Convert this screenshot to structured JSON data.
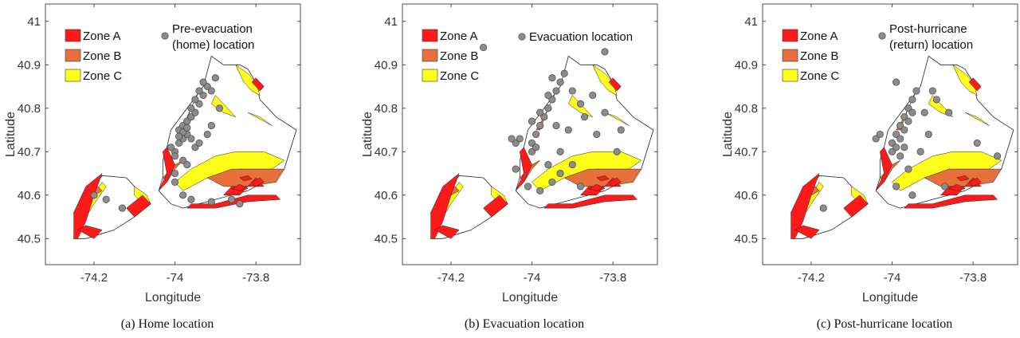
{
  "colors": {
    "zone_a": "#ff1a1a",
    "zone_b": "#e8703a",
    "zone_c": "#ffff1a",
    "land": "#ffffff",
    "marker": "#8c8c8c",
    "marker_edge": "#444444"
  },
  "chart_data": [
    {
      "type": "scatter",
      "title": "",
      "xlabel": "Longitude",
      "ylabel": "Latitude",
      "xlim": [
        -74.32,
        -73.69
      ],
      "ylim": [
        40.44,
        41.04
      ],
      "xticks": [
        "-74.2",
        "-74",
        "-73.8"
      ],
      "yticks": [
        "40.5",
        "40.6",
        "40.7",
        "40.8",
        "40.9",
        "41"
      ],
      "legend": [
        "Zone A",
        "Zone B",
        "Zone C"
      ],
      "marker_label": [
        "Pre-evacuation",
        "(home) location"
      ],
      "caption": "(a)  Home location",
      "points": [
        [
          -74.17,
          40.59
        ],
        [
          -74.13,
          40.57
        ],
        [
          -74.2,
          40.6
        ],
        [
          -74.0,
          40.65
        ],
        [
          -74.0,
          40.63
        ],
        [
          -73.98,
          40.6
        ],
        [
          -73.96,
          40.59
        ],
        [
          -73.91,
          40.585
        ],
        [
          -73.84,
          40.58
        ],
        [
          -73.86,
          40.59
        ],
        [
          -74.0,
          40.7
        ],
        [
          -74.01,
          40.71
        ],
        [
          -73.99,
          40.72
        ],
        [
          -73.98,
          40.73
        ],
        [
          -73.97,
          40.74
        ],
        [
          -73.99,
          40.75
        ],
        [
          -73.98,
          40.76
        ],
        [
          -73.97,
          40.77
        ],
        [
          -73.96,
          40.78
        ],
        [
          -73.95,
          40.79
        ],
        [
          -73.96,
          40.8
        ],
        [
          -73.94,
          40.81
        ],
        [
          -73.95,
          40.82
        ],
        [
          -73.93,
          40.83
        ],
        [
          -73.94,
          40.84
        ],
        [
          -73.92,
          40.85
        ],
        [
          -73.93,
          40.86
        ],
        [
          -73.98,
          40.745
        ],
        [
          -73.97,
          40.755
        ],
        [
          -73.99,
          40.735
        ],
        [
          -73.95,
          40.71
        ],
        [
          -73.94,
          40.72
        ],
        [
          -73.96,
          40.73
        ],
        [
          -73.92,
          40.74
        ],
        [
          -73.91,
          40.76
        ],
        [
          -73.89,
          40.8
        ],
        [
          -73.91,
          40.84
        ],
        [
          -73.9,
          40.87
        ],
        [
          -73.98,
          40.68
        ],
        [
          -74.0,
          40.69
        ],
        [
          -73.97,
          40.67
        ]
      ]
    },
    {
      "type": "scatter",
      "title": "",
      "xlabel": "Longitude",
      "ylabel": "Latitude",
      "xlim": [
        -74.32,
        -73.69
      ],
      "ylim": [
        40.44,
        41.04
      ],
      "xticks": [
        "-74.2",
        "-74",
        "-73.8"
      ],
      "yticks": [
        "40.5",
        "40.6",
        "40.7",
        "40.8",
        "40.9",
        "41"
      ],
      "legend": [
        "Zone A",
        "Zone B",
        "Zone C"
      ],
      "marker_label": [
        "Evacuation location"
      ],
      "caption": "(b)  Evacuation location",
      "points": [
        [
          -74.12,
          40.94
        ],
        [
          -73.82,
          40.93
        ],
        [
          -74.04,
          40.72
        ],
        [
          -74.05,
          40.73
        ],
        [
          -74.03,
          40.73
        ],
        [
          -74.04,
          40.66
        ],
        [
          -74.0,
          40.7
        ],
        [
          -74.0,
          40.72
        ],
        [
          -73.99,
          40.74
        ],
        [
          -73.98,
          40.76
        ],
        [
          -73.97,
          40.78
        ],
        [
          -73.96,
          40.8
        ],
        [
          -73.95,
          40.82
        ],
        [
          -73.94,
          40.84
        ],
        [
          -73.93,
          40.86
        ],
        [
          -73.92,
          40.88
        ],
        [
          -73.99,
          40.71
        ],
        [
          -74.0,
          40.77
        ],
        [
          -73.98,
          40.79
        ],
        [
          -73.96,
          40.83
        ],
        [
          -73.95,
          40.87
        ],
        [
          -73.9,
          40.84
        ],
        [
          -73.88,
          40.81
        ],
        [
          -73.87,
          40.78
        ],
        [
          -73.85,
          40.83
        ],
        [
          -73.82,
          40.79
        ],
        [
          -73.78,
          40.75
        ],
        [
          -73.79,
          40.7
        ],
        [
          -73.84,
          40.74
        ],
        [
          -73.96,
          40.67
        ],
        [
          -73.93,
          40.65
        ],
        [
          -73.95,
          40.63
        ],
        [
          -73.98,
          40.61
        ],
        [
          -74.01,
          40.62
        ],
        [
          -73.9,
          40.67
        ],
        [
          -73.93,
          40.7
        ],
        [
          -73.88,
          40.62
        ],
        [
          -73.91,
          40.75
        ],
        [
          -73.94,
          40.76
        ]
      ]
    },
    {
      "type": "scatter",
      "title": "",
      "xlabel": "Longitude",
      "ylabel": "Latitude",
      "xlim": [
        -74.32,
        -73.69
      ],
      "ylim": [
        40.44,
        41.04
      ],
      "xticks": [
        "-74.2",
        "-74",
        "-73.8"
      ],
      "yticks": [
        "40.5",
        "40.6",
        "40.7",
        "40.8",
        "40.9",
        "41"
      ],
      "legend": [
        "Zone A",
        "Zone B",
        "Zone C"
      ],
      "marker_label": [
        "Post-hurricane",
        "(return) location"
      ],
      "caption": "(c)  Post-hurricane location",
      "points": [
        [
          -73.99,
          40.86
        ],
        [
          -74.04,
          40.73
        ],
        [
          -74.03,
          40.74
        ],
        [
          -74.0,
          40.7
        ],
        [
          -74.0,
          40.72
        ],
        [
          -73.99,
          40.74
        ],
        [
          -73.98,
          40.76
        ],
        [
          -73.97,
          40.78
        ],
        [
          -73.96,
          40.8
        ],
        [
          -73.95,
          40.82
        ],
        [
          -73.94,
          40.84
        ],
        [
          -73.99,
          40.71
        ],
        [
          -73.98,
          40.73
        ],
        [
          -73.97,
          40.75
        ],
        [
          -73.96,
          40.77
        ],
        [
          -73.95,
          40.79
        ],
        [
          -73.98,
          40.69
        ],
        [
          -73.97,
          40.71
        ],
        [
          -73.93,
          40.7
        ],
        [
          -73.91,
          40.74
        ],
        [
          -73.92,
          40.79
        ],
        [
          -73.89,
          40.82
        ],
        [
          -73.9,
          40.84
        ],
        [
          -73.86,
          40.79
        ],
        [
          -73.79,
          40.72
        ],
        [
          -73.74,
          40.69
        ],
        [
          -73.96,
          40.66
        ],
        [
          -73.99,
          40.62
        ],
        [
          -73.95,
          40.6
        ],
        [
          -73.87,
          40.62
        ],
        [
          -74.17,
          40.57
        ]
      ]
    }
  ]
}
